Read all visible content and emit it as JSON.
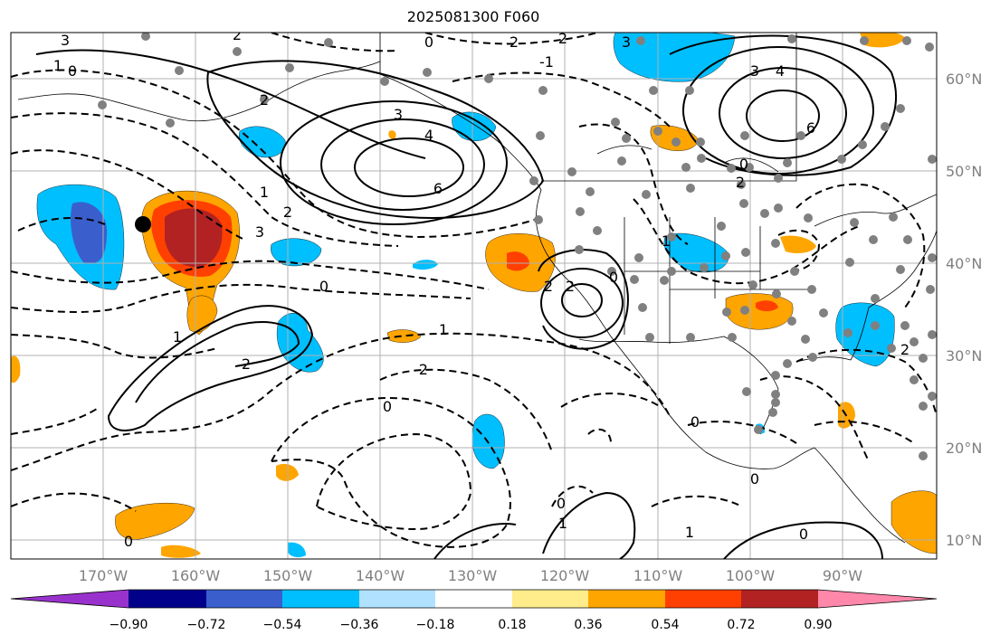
{
  "title": "2025081300 F060",
  "lat_labels": [
    "60°N",
    "50°N",
    "40°N",
    "30°N",
    "20°N",
    "10°N"
  ],
  "lon_labels": [
    "170°W",
    "160°W",
    "150°W",
    "140°W",
    "130°W",
    "120°W",
    "110°W",
    "100°W",
    "90°W"
  ],
  "colorbar": {
    "colors": [
      "#9932cc",
      "#00008b",
      "#3a5fcd",
      "#00bfff",
      "#b0e2ff",
      "#ffffff",
      "#ffec8b",
      "#ffa500",
      "#ff4000",
      "#b22222",
      "#ff88aa"
    ],
    "tick_labels": [
      "−0.90",
      "−0.72",
      "−0.54",
      "−0.36",
      "−0.18",
      "0.18",
      "0.36",
      "0.54",
      "0.72",
      "0.90"
    ]
  },
  "contour_labels": [
    "3",
    "2",
    "1",
    "0",
    "0",
    "2",
    "2",
    "3",
    "4",
    "-1",
    "-2",
    "3",
    "3",
    "4",
    "6",
    "1",
    "6",
    "2",
    "2",
    "3",
    "0",
    "1",
    "2",
    "2",
    "1",
    "2",
    "0",
    "1",
    "2",
    "0",
    "0",
    "0",
    "0",
    "0",
    "1",
    "1",
    "0",
    "0",
    "2"
  ],
  "colors": {
    "axis_text": "#808080",
    "grid": "#b0b0b0",
    "marker": "#000000",
    "station_dot": "#808080"
  }
}
